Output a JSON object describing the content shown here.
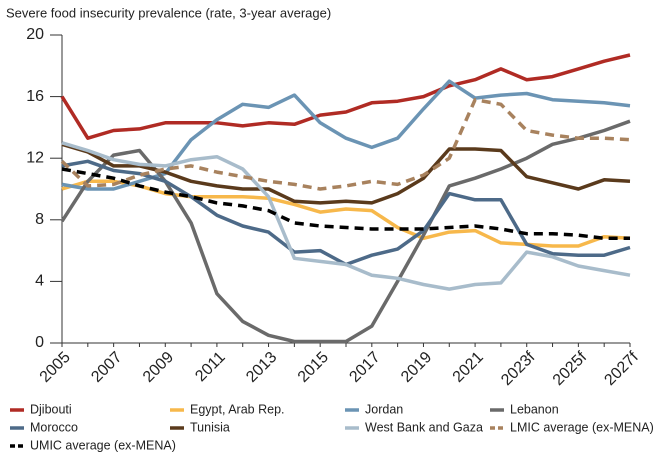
{
  "chart_data": {
    "type": "line",
    "title": "Severe food insecurity prevalence (rate, 3-year average)",
    "categories": [
      "2005",
      null,
      "2007",
      null,
      "2009",
      null,
      "2011",
      null,
      "2013",
      null,
      "2015",
      null,
      "2017",
      null,
      "2019",
      null,
      "2021",
      null,
      "2023f",
      null,
      "2025f",
      null,
      "2027f"
    ],
    "ylim": [
      0,
      20
    ],
    "yticks": [
      0,
      4,
      8,
      12,
      16,
      20
    ],
    "series": [
      {
        "name": "Djibouti",
        "color": "#b02b24",
        "dash": false,
        "values": [
          16,
          13.3,
          13.8,
          13.9,
          14.3,
          14.3,
          14.3,
          14.1,
          14.3,
          14.2,
          14.8,
          15.0,
          15.6,
          15.7,
          16.0,
          16.7,
          17.1,
          17.8,
          17.1,
          17.3,
          17.8,
          18.3,
          18.7
        ]
      },
      {
        "name": "Egypt, Arab Rep.",
        "color": "#f7b84b",
        "dash": false,
        "values": [
          10.0,
          10.5,
          10.5,
          10.2,
          9.7,
          9.5,
          9.5,
          9.5,
          9.4,
          9.0,
          8.5,
          8.7,
          8.6,
          7.5,
          6.8,
          7.2,
          7.3,
          6.5,
          6.4,
          6.3,
          6.3,
          6.9,
          6.8
        ]
      },
      {
        "name": "Jordan",
        "color": "#6b94b4",
        "dash": false,
        "values": [
          10.3,
          10.0,
          10.0,
          10.5,
          11.0,
          13.2,
          14.5,
          15.5,
          15.3,
          16.1,
          14.3,
          13.3,
          12.7,
          13.3,
          15.2,
          17.0,
          15.9,
          16.1,
          16.2,
          15.8,
          15.7,
          15.6,
          15.4
        ]
      },
      {
        "name": "Lebanon",
        "color": "#6a6a6a",
        "dash": false,
        "values": [
          7.9,
          10.5,
          12.2,
          12.5,
          10.5,
          7.8,
          3.2,
          1.4,
          0.5,
          0.1,
          0.1,
          0.1,
          1.1,
          4.0,
          7.0,
          10.2,
          10.7,
          11.3,
          12.0,
          12.9,
          13.3,
          13.8,
          14.4
        ]
      },
      {
        "name": "Morocco",
        "color": "#4d6a88",
        "dash": false,
        "values": [
          11.5,
          11.8,
          11.2,
          11.0,
          10.5,
          9.5,
          8.3,
          7.6,
          7.2,
          5.9,
          6.0,
          5.1,
          5.7,
          6.1,
          7.3,
          9.7,
          9.3,
          9.3,
          6.4,
          5.8,
          5.7,
          5.7,
          6.2
        ]
      },
      {
        "name": "Tunisia",
        "color": "#5a3a1c",
        "dash": false,
        "values": [
          12.9,
          12.4,
          11.5,
          11.5,
          11.1,
          10.5,
          10.2,
          10.0,
          10.0,
          9.2,
          9.1,
          9.2,
          9.1,
          9.7,
          10.7,
          12.6,
          12.6,
          12.5,
          10.8,
          10.4,
          10.0,
          10.6,
          10.5
        ]
      },
      {
        "name": "West Bank and Gaza",
        "color": "#a8bccb",
        "dash": false,
        "values": [
          13.0,
          12.5,
          11.9,
          11.6,
          11.5,
          11.9,
          12.1,
          11.3,
          9.5,
          5.5,
          5.3,
          5.1,
          4.4,
          4.2,
          3.8,
          3.5,
          3.8,
          3.9,
          5.9,
          5.6,
          5.0,
          4.7,
          4.4
        ]
      },
      {
        "name": "LMIC average (ex-MENA)",
        "color": "#a8825e",
        "dash": true,
        "values": [
          11.8,
          10.2,
          10.3,
          10.9,
          11.3,
          11.5,
          11.1,
          10.8,
          10.5,
          10.3,
          10.0,
          10.2,
          10.5,
          10.3,
          10.9,
          12.0,
          15.8,
          15.5,
          13.8,
          13.5,
          13.3,
          13.3,
          13.2
        ]
      },
      {
        "name": "UMIC average (ex-MENA)",
        "color": "#000000",
        "dash": true,
        "values": [
          11.3,
          11.0,
          10.7,
          10.2,
          9.8,
          9.5,
          9.1,
          8.9,
          8.6,
          7.8,
          7.6,
          7.5,
          7.4,
          7.4,
          7.4,
          7.5,
          7.6,
          7.4,
          7.1,
          7.1,
          7.0,
          6.8,
          6.8
        ]
      }
    ]
  }
}
